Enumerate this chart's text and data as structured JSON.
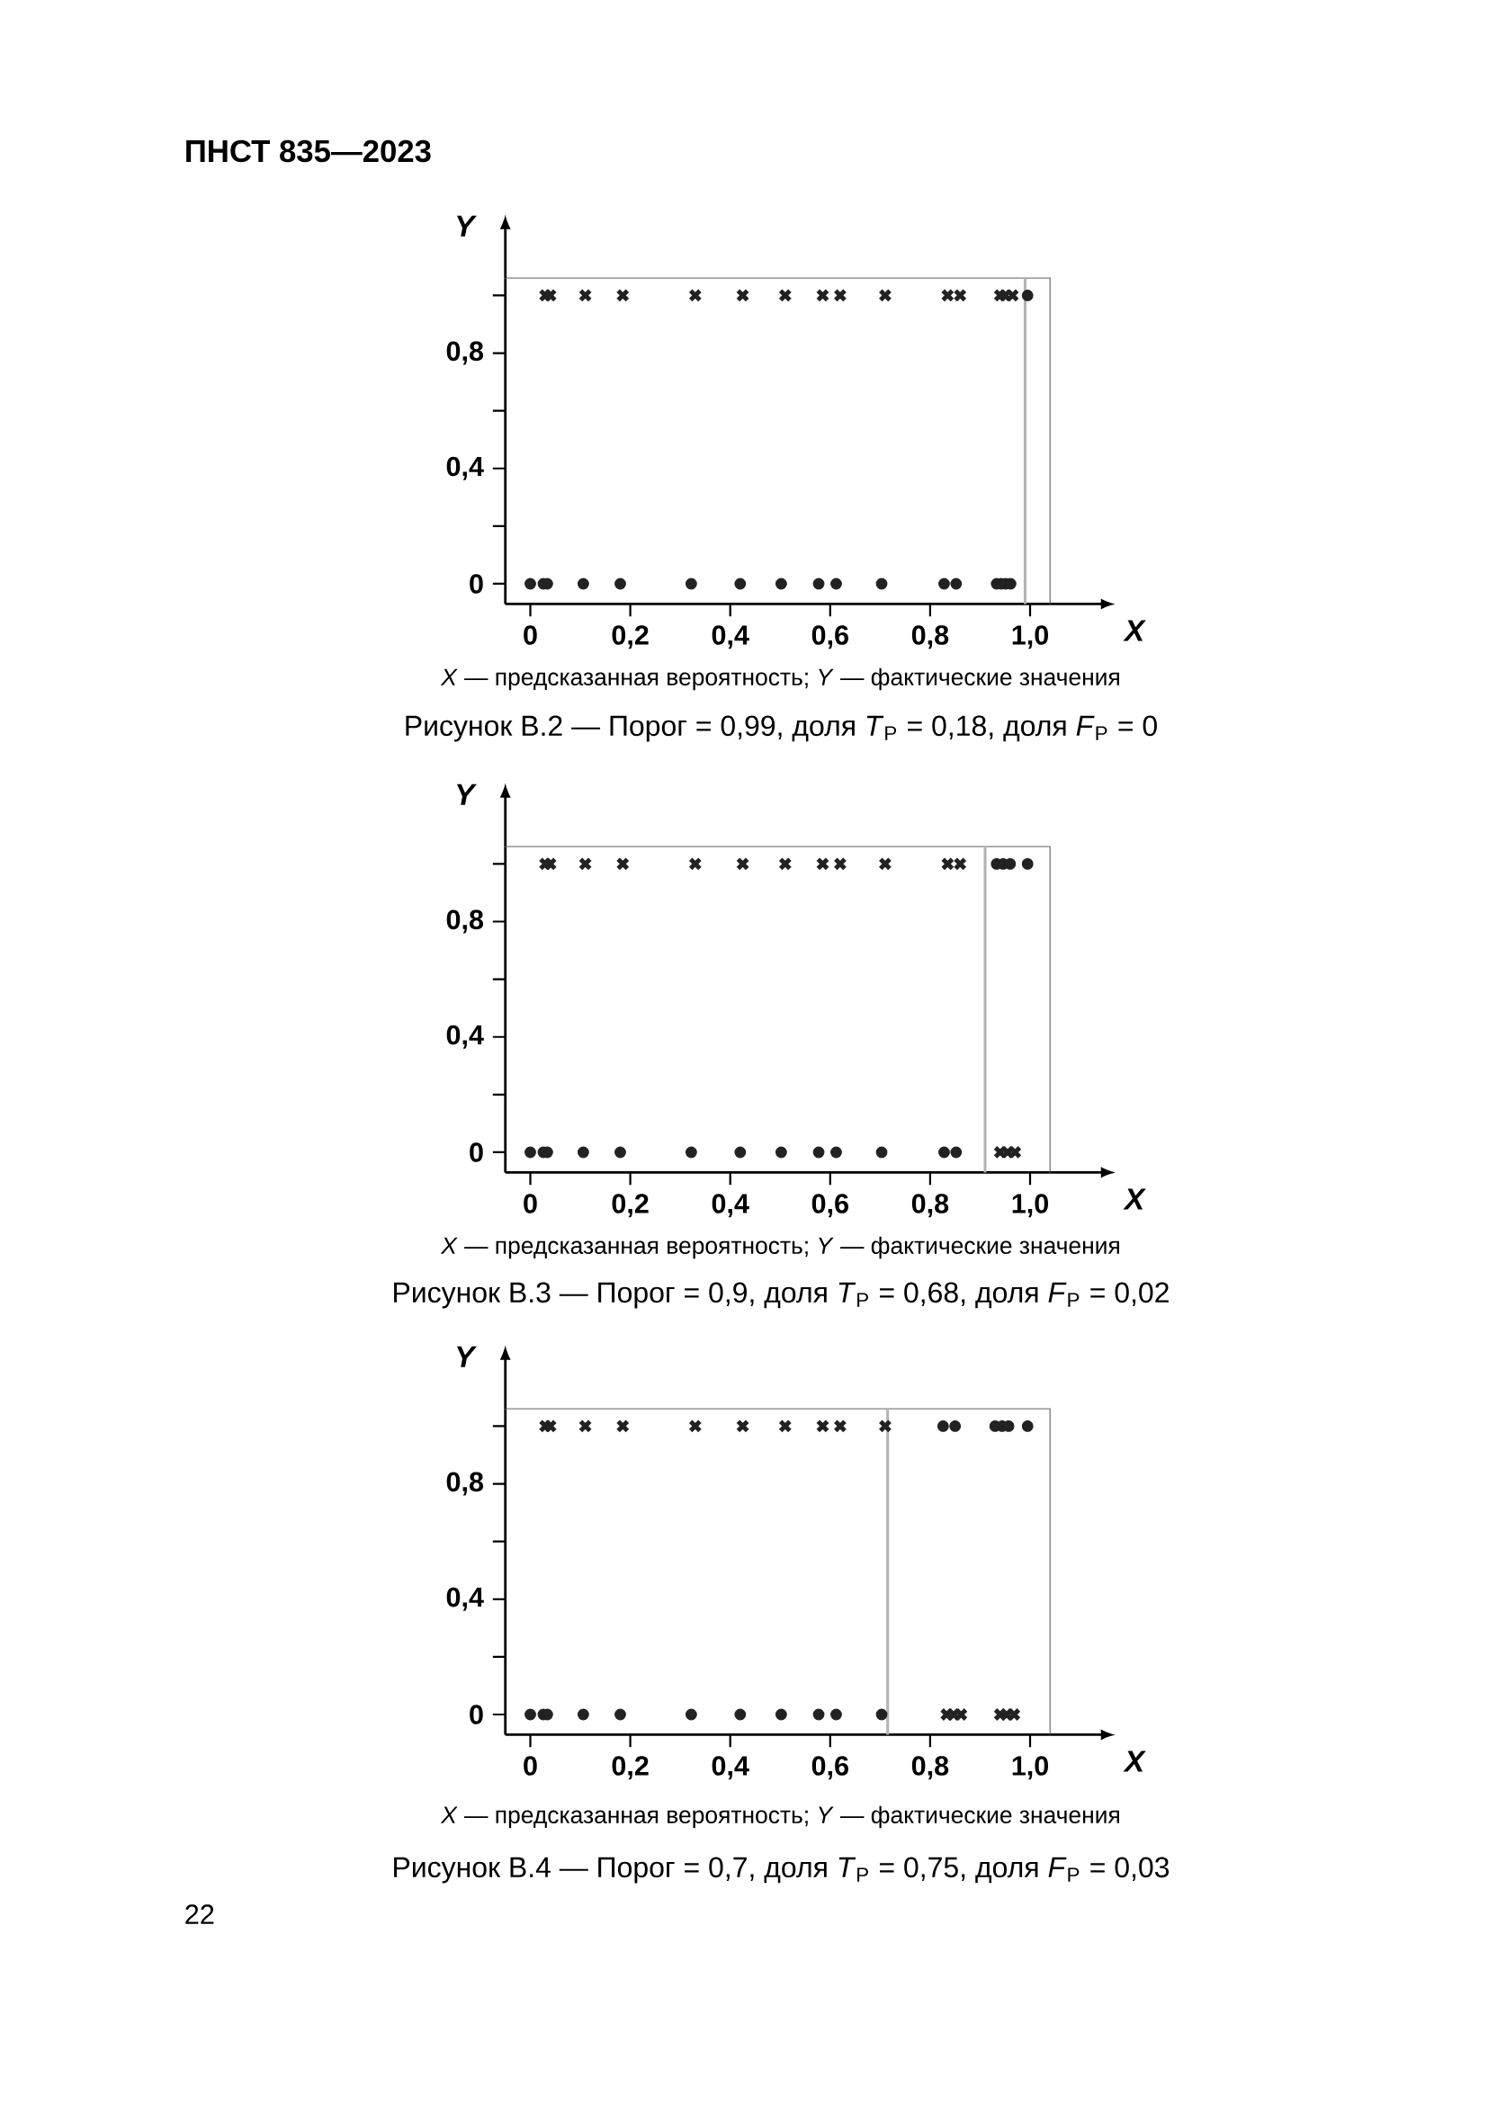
{
  "chart_data": [
    {
      "type": "scatter",
      "title": "Рисунок В.2 — Порог = 0,99, доля *T*$_{P}$ = 0,18, доля *F*$_{P}$ = 0",
      "xlabel": "X",
      "ylabel": "Y",
      "annotations": [
        "ПНСТ 835—2023",
        "*X* — предсказанная вероятность; *Y* — фактические значения"
      ],
      "xlim": [
        -0.05,
        1.04
      ],
      "ylim": [
        -0.07,
        1.06
      ],
      "xticks": [
        0,
        {
          "value": 0.2,
          "label": "0,2"
        },
        {
          "value": 0.4,
          "label": "0,4"
        },
        {
          "value": 0.6,
          "label": "0,6"
        },
        {
          "value": 0.8,
          "label": "0,8"
        },
        {
          "value": 1.0,
          "label": "1,0"
        }
      ],
      "yticks": [
        0,
        {
          "value": 0.2,
          "label": null
        },
        {
          "value": 0.4,
          "label": "0,4"
        },
        {
          "value": 0.6,
          "label": null
        },
        {
          "value": 0.8,
          "label": "0,8"
        },
        {
          "value": 1.0,
          "label": null
        }
      ],
      "ref_lines": [
        {
          "axis": "x",
          "value": 0.99,
          "color": "#b3b3b3"
        }
      ],
      "series": [
        {
          "color": "#222222",
          "marker": "circle",
          "x": [
            0,
            0.026,
            0.034,
            0.106,
            0.18,
            0.322,
            0.42,
            0.502,
            0.577,
            0.612,
            0.703,
            0.828,
            0.852,
            0.933,
            0.942,
            0.951,
            0.961,
            0.995
          ],
          "values": [
            0,
            0,
            0,
            0,
            0,
            0,
            0,
            0,
            0,
            0,
            0,
            0,
            0,
            0,
            0,
            0,
            0,
            1
          ]
        },
        {
          "color": "#222222",
          "marker": "cross",
          "x": [
            0.03,
            0.04,
            0.11,
            0.185,
            0.33,
            0.425,
            0.51,
            0.585,
            0.62,
            0.71,
            0.835,
            0.86,
            0.94,
            0.95,
            0.965
          ],
          "values": [
            1,
            1,
            1,
            1,
            1,
            1,
            1,
            1,
            1,
            1,
            1,
            1,
            1,
            1,
            1
          ]
        }
      ]
    },
    {
      "type": "scatter",
      "title": "Рисунок В.3 — Порог = 0,9, доля *T*$_{P}$ = 0,68, доля *F*$_{P}$ = 0,02",
      "xlabel": "X",
      "ylabel": "Y",
      "annotations": [
        "*X* — предсказанная вероятность; *Y* — фактические значения"
      ],
      "xlim": [
        -0.05,
        1.04
      ],
      "ylim": [
        -0.07,
        1.06
      ],
      "xticks": [
        0,
        {
          "value": 0.2,
          "label": "0,2"
        },
        {
          "value": 0.4,
          "label": "0,4"
        },
        {
          "value": 0.6,
          "label": "0,6"
        },
        {
          "value": 0.8,
          "label": "0,8"
        },
        {
          "value": 1.0,
          "label": "1,0"
        }
      ],
      "yticks": [
        0,
        {
          "value": 0.2,
          "label": null
        },
        {
          "value": 0.4,
          "label": "0,4"
        },
        {
          "value": 0.6,
          "label": null
        },
        {
          "value": 0.8,
          "label": "0,8"
        },
        {
          "value": 1.0,
          "label": null
        }
      ],
      "ref_lines": [
        {
          "axis": "x",
          "value": 0.91,
          "color": "#b3b3b3"
        }
      ],
      "series": [
        {
          "color": "#222222",
          "marker": "circle",
          "x": [
            0,
            0.026,
            0.034,
            0.106,
            0.18,
            0.322,
            0.42,
            0.502,
            0.577,
            0.612,
            0.703,
            0.828,
            0.852,
            0.933,
            0.946,
            0.96,
            0.995
          ],
          "values": [
            0,
            0,
            0,
            0,
            0,
            0,
            0,
            0,
            0,
            0,
            0,
            0,
            0,
            1,
            1,
            1,
            1
          ]
        },
        {
          "color": "#222222",
          "marker": "cross",
          "x": [
            0.03,
            0.04,
            0.11,
            0.185,
            0.33,
            0.425,
            0.51,
            0.585,
            0.62,
            0.71,
            0.835,
            0.86,
            0.94,
            0.955,
            0.97
          ],
          "values": [
            1,
            1,
            1,
            1,
            1,
            1,
            1,
            1,
            1,
            1,
            1,
            1,
            0,
            0,
            0
          ]
        }
      ]
    },
    {
      "type": "scatter",
      "title": "Рисунок В.4 — Порог = 0,7, доля *T*$_{P}$ = 0,75, доля *F*$_{P}$ = 0,03",
      "xlabel": "X",
      "ylabel": "Y",
      "annotations": [
        "*X* — предсказанная вероятность; *Y* — фактические значения",
        "22"
      ],
      "xlim": [
        -0.05,
        1.04
      ],
      "ylim": [
        -0.07,
        1.06
      ],
      "xticks": [
        0,
        {
          "value": 0.2,
          "label": "0,2"
        },
        {
          "value": 0.4,
          "label": "0,4"
        },
        {
          "value": 0.6,
          "label": "0,6"
        },
        {
          "value": 0.8,
          "label": "0,8"
        },
        {
          "value": 1.0,
          "label": "1,0"
        }
      ],
      "yticks": [
        0,
        {
          "value": 0.2,
          "label": null
        },
        {
          "value": 0.4,
          "label": "0,4"
        },
        {
          "value": 0.6,
          "label": null
        },
        {
          "value": 0.8,
          "label": "0,8"
        },
        {
          "value": 1.0,
          "label": null
        }
      ],
      "ref_lines": [
        {
          "axis": "x",
          "value": 0.715,
          "color": "#b3b3b3"
        }
      ],
      "series": [
        {
          "color": "#222222",
          "marker": "circle",
          "x": [
            0,
            0.026,
            0.034,
            0.106,
            0.18,
            0.322,
            0.42,
            0.502,
            0.577,
            0.612,
            0.703,
            0.826,
            0.85,
            0.93,
            0.944,
            0.957,
            0.995
          ],
          "values": [
            0,
            0,
            0,
            0,
            0,
            0,
            0,
            0,
            0,
            0,
            0,
            1,
            1,
            1,
            1,
            1,
            1
          ]
        },
        {
          "color": "#222222",
          "marker": "cross",
          "x": [
            0.03,
            0.04,
            0.11,
            0.185,
            0.33,
            0.425,
            0.51,
            0.585,
            0.62,
            0.71,
            0.833,
            0.847,
            0.862,
            0.94,
            0.953,
            0.968
          ],
          "values": [
            1,
            1,
            1,
            1,
            1,
            1,
            1,
            1,
            1,
            1,
            0,
            0,
            0,
            0,
            0,
            0
          ]
        }
      ]
    }
  ]
}
